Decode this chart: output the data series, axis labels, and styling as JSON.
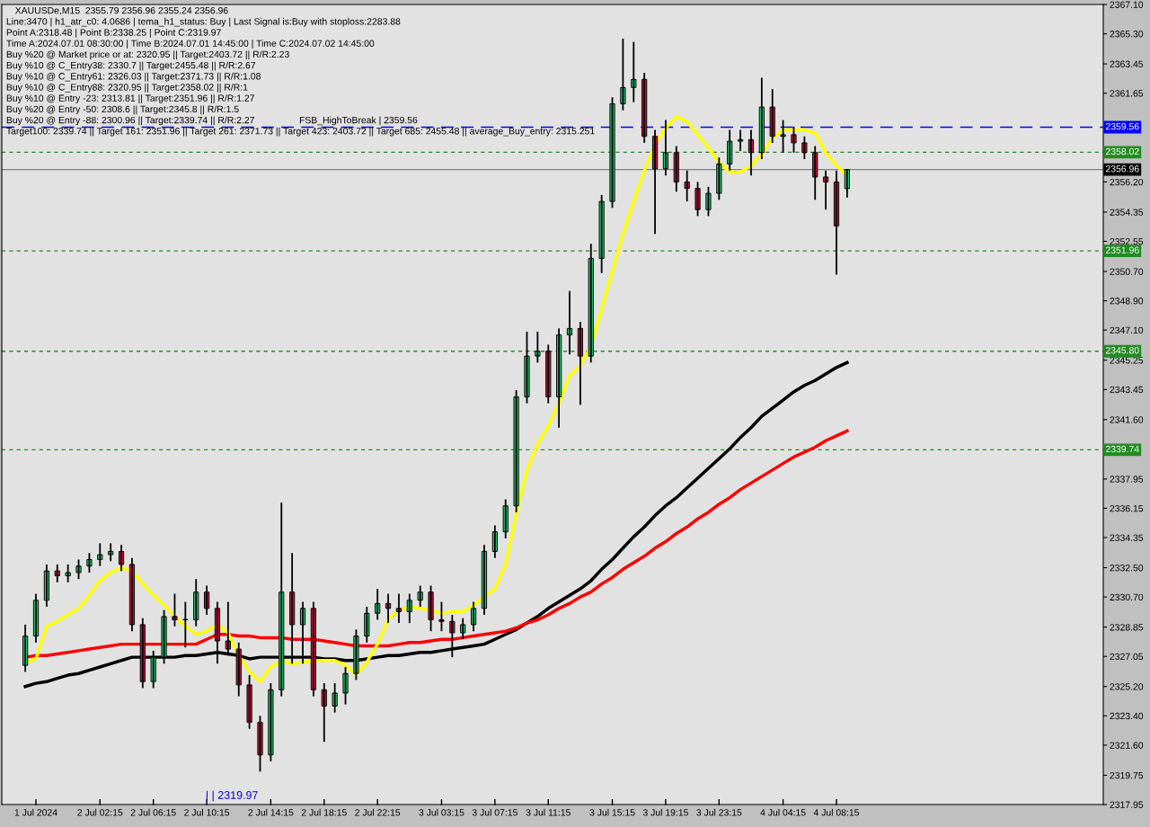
{
  "chart_data": {
    "type": "candlestick",
    "title": "XAUUSDe,M15  2355.79 2356.96 2355.24 2356.96",
    "annotations": [
      "Line:3470 | h1_atr_c0: 4.0686 | tema_h1_status: Buy | Last Signal is:Buy with stoploss:2283.88",
      "Point A:2318.48 | Point B:2338.25 | Point C:2319.97",
      "Time A:2024.07.01 08:30:00 | Time B:2024.07.01 14:45:00 | Time C:2024.07.02 14:45:00",
      "Buy %20 @ Market price or at: 2320.95 || Target:2403.72 || R/R:2.23",
      "Buy %10 @ C_Entry38: 2330.7 || Target:2455.48 || R/R:2.67",
      "Buy %10 @ C_Entry61: 2326.03 || Target:2371.73 || R/R:1.08",
      "Buy %10 @ C_Entry88: 2320.95 || Target:2358.02 || R/R:1",
      "Buy %10 @ Entry -23: 2313.81 || Target:2351.96 || R/R:1.27",
      "Buy %20 @ Entry -50: 2308.6 || Target:2345.8 || R/R:1.5",
      "Buy %20 @ Entry -88: 2300.96 || Target:2339.74 || R/R:2.27",
      "Target100: 2339.74 || Target 161: 2351.96 || Target 261: 2371.73 || Target 423: 2403.72 || Target 685: 2455.48 || average_Buy_entry: 2315.251",
      "FSB_HighToBreak | 2359.56",
      "| | 2319.97"
    ],
    "categories": [
      null,
      "1 Jul 2024",
      null,
      null,
      null,
      null,
      null,
      "2 Jul 02:15",
      null,
      null,
      null,
      null,
      "2 Jul 06:15",
      null,
      null,
      null,
      null,
      "2 Jul 10:15",
      null,
      null,
      null,
      null,
      null,
      "2 Jul 14:15",
      null,
      null,
      null,
      null,
      "2 Jul 18:15",
      null,
      null,
      null,
      null,
      "2 Jul 22:15",
      null,
      null,
      null,
      null,
      null,
      "3 Jul 03:15",
      null,
      null,
      null,
      null,
      "3 Jul 07:15",
      null,
      null,
      null,
      null,
      "3 Jul 11:15",
      null,
      null,
      null,
      null,
      null,
      "3 Jul 15:15",
      null,
      null,
      null,
      null,
      "3 Jul 19:15",
      null,
      null,
      null,
      null,
      "3 Jul 23:15",
      null,
      null,
      null,
      null,
      null,
      "4 Jul 04:15",
      null,
      null,
      null,
      null,
      "4 Jul 08:15",
      null
    ],
    "ohlc": [
      [
        2326.5,
        2329.0,
        2326.1,
        2328.3
      ],
      [
        2328.3,
        2330.9,
        2327.9,
        2330.5
      ],
      [
        2330.5,
        2332.7,
        2330.1,
        2332.3
      ],
      [
        2332.3,
        2332.7,
        2331.6,
        2332.0
      ],
      [
        2332.0,
        2332.7,
        2331.6,
        2332.2
      ],
      [
        2332.2,
        2333.0,
        2331.8,
        2332.6
      ],
      [
        2332.6,
        2333.4,
        2332.2,
        2333.0
      ],
      [
        2333.0,
        2334.0,
        2332.6,
        2333.3
      ],
      [
        2333.3,
        2334.0,
        2332.9,
        2333.5
      ],
      [
        2333.5,
        2333.9,
        2332.3,
        2332.7
      ],
      [
        2332.7,
        2333.1,
        2328.6,
        2329.0
      ],
      [
        2329.0,
        2329.4,
        2325.1,
        2325.5
      ],
      [
        2325.5,
        2327.4,
        2325.1,
        2327.0
      ],
      [
        2327.0,
        2329.9,
        2326.6,
        2329.5
      ],
      [
        2329.5,
        2330.9,
        2328.9,
        2329.3
      ],
      [
        2329.3,
        2330.4,
        2327.6,
        2329.3
      ],
      [
        2329.3,
        2331.8,
        2328.9,
        2331.0
      ],
      [
        2331.0,
        2331.4,
        2329.6,
        2330.0
      ],
      [
        2330.0,
        2330.4,
        2326.6,
        2328.0
      ],
      [
        2328.0,
        2330.4,
        2327.1,
        2327.5
      ],
      [
        2327.5,
        2327.9,
        2324.6,
        2325.3
      ],
      [
        2325.3,
        2325.9,
        2322.6,
        2323.0
      ],
      [
        2323.0,
        2323.4,
        2319.97,
        2321.0
      ],
      [
        2321.0,
        2325.4,
        2320.6,
        2325.0
      ],
      [
        2325.0,
        2336.5,
        2324.6,
        2331.0
      ],
      [
        2331.0,
        2333.4,
        2326.6,
        2329.0
      ],
      [
        2329.0,
        2330.4,
        2326.6,
        2330.0
      ],
      [
        2330.0,
        2330.4,
        2324.6,
        2325.0
      ],
      [
        2325.0,
        2325.4,
        2321.8,
        2324.0
      ],
      [
        2324.0,
        2325.4,
        2323.6,
        2324.8
      ],
      [
        2324.8,
        2326.4,
        2324.1,
        2326.0
      ],
      [
        2326.0,
        2328.7,
        2325.6,
        2328.3
      ],
      [
        2328.3,
        2330.1,
        2327.9,
        2329.7
      ],
      [
        2329.7,
        2331.2,
        2329.3,
        2330.3
      ],
      [
        2330.3,
        2330.9,
        2329.1,
        2330.0
      ],
      [
        2330.0,
        2330.9,
        2329.1,
        2329.8
      ],
      [
        2329.8,
        2330.9,
        2329.1,
        2330.5
      ],
      [
        2330.5,
        2331.4,
        2330.1,
        2331.0
      ],
      [
        2331.0,
        2331.4,
        2328.6,
        2329.3
      ],
      [
        2329.3,
        2330.4,
        2328.6,
        2329.2
      ],
      [
        2329.2,
        2329.6,
        2327.0,
        2328.5
      ],
      [
        2328.5,
        2329.4,
        2328.1,
        2329.0
      ],
      [
        2329.0,
        2330.4,
        2328.6,
        2330.0
      ],
      [
        2330.0,
        2333.9,
        2329.6,
        2333.5
      ],
      [
        2333.5,
        2335.1,
        2333.1,
        2334.7
      ],
      [
        2334.7,
        2336.7,
        2334.3,
        2336.3
      ],
      [
        2336.3,
        2343.4,
        2335.9,
        2343.0
      ],
      [
        2343.0,
        2347.0,
        2342.6,
        2345.5
      ],
      [
        2345.5,
        2347.0,
        2345.1,
        2345.8
      ],
      [
        2345.8,
        2346.2,
        2342.6,
        2343.0
      ],
      [
        2343.0,
        2347.2,
        2341.1,
        2346.8
      ],
      [
        2346.8,
        2349.5,
        2345.6,
        2347.2
      ],
      [
        2347.2,
        2347.6,
        2342.5,
        2345.5
      ],
      [
        2345.5,
        2352.4,
        2345.1,
        2351.5
      ],
      [
        2351.5,
        2355.4,
        2350.6,
        2355.0
      ],
      [
        2355.0,
        2361.4,
        2354.6,
        2361.0
      ],
      [
        2361.0,
        2365.0,
        2360.6,
        2362.0
      ],
      [
        2362.0,
        2364.8,
        2361.1,
        2362.5
      ],
      [
        2362.5,
        2362.9,
        2358.6,
        2359.0
      ],
      [
        2359.0,
        2359.4,
        2353.0,
        2357.0
      ],
      [
        2357.0,
        2360.0,
        2356.6,
        2358.0
      ],
      [
        2358.0,
        2358.4,
        2355.6,
        2356.2
      ],
      [
        2356.2,
        2356.9,
        2355.0,
        2355.8
      ],
      [
        2355.8,
        2356.2,
        2354.1,
        2354.5
      ],
      [
        2354.5,
        2355.9,
        2354.1,
        2355.5
      ],
      [
        2355.5,
        2357.7,
        2355.1,
        2357.3
      ],
      [
        2357.3,
        2359.4,
        2356.9,
        2358.7
      ],
      [
        2358.7,
        2359.4,
        2358.1,
        2358.8
      ],
      [
        2358.8,
        2359.4,
        2356.6,
        2358.0
      ],
      [
        2358.0,
        2362.6,
        2357.6,
        2360.8
      ],
      [
        2360.8,
        2361.9,
        2358.6,
        2359.0
      ],
      [
        2359.0,
        2360.0,
        2358.0,
        2359.1
      ],
      [
        2359.1,
        2359.6,
        2358.0,
        2358.6
      ],
      [
        2358.6,
        2359.0,
        2357.6,
        2358.0
      ],
      [
        2358.0,
        2358.4,
        2355.1,
        2356.5
      ],
      [
        2356.5,
        2356.9,
        2354.5,
        2356.2
      ],
      [
        2356.2,
        2356.9,
        2350.5,
        2353.5
      ],
      [
        2355.79,
        2356.96,
        2355.24,
        2356.96
      ]
    ],
    "series": [
      {
        "type": "line",
        "color": "#000000",
        "values": [
          2325.2,
          2325.4,
          2325.5,
          2325.7,
          2325.9,
          2326.0,
          2326.2,
          2326.4,
          2326.6,
          2326.8,
          2327.0,
          2327.0,
          2327.0,
          2327.0,
          2327.0,
          2327.1,
          2327.1,
          2327.2,
          2327.3,
          2327.2,
          2327.1,
          2326.9,
          2327.0,
          2327.0,
          2327.0,
          2327.0,
          2327.0,
          2327.0,
          2326.9,
          2326.9,
          2326.8,
          2326.8,
          2326.9,
          2327.0,
          2327.1,
          2327.1,
          2327.2,
          2327.3,
          2327.3,
          2327.4,
          2327.5,
          2327.6,
          2327.7,
          2327.8,
          2328.1,
          2328.4,
          2328.7,
          2329.1,
          2329.5,
          2330.0,
          2330.4,
          2330.8,
          2331.2,
          2331.7,
          2332.4,
          2333.0,
          2333.7,
          2334.4,
          2335.0,
          2335.7,
          2336.3,
          2336.8,
          2337.4,
          2338.0,
          2338.6,
          2339.2,
          2339.8,
          2340.5,
          2341.1,
          2341.8,
          2342.3,
          2342.8,
          2343.3,
          2343.7,
          2344.0,
          2344.4,
          2344.8,
          2345.1
        ]
      },
      {
        "type": "line",
        "color": "#ff0000",
        "values": [
          2327.0,
          2327.1,
          2327.1,
          2327.2,
          2327.3,
          2327.4,
          2327.5,
          2327.6,
          2327.7,
          2327.8,
          2327.8,
          2327.8,
          2327.8,
          2327.8,
          2327.8,
          2327.8,
          2327.8,
          2328.1,
          2328.4,
          2328.4,
          2328.3,
          2328.3,
          2328.2,
          2328.2,
          2328.2,
          2328.1,
          2328.1,
          2328.1,
          2328.0,
          2327.9,
          2327.8,
          2327.7,
          2327.7,
          2327.7,
          2327.7,
          2327.8,
          2327.9,
          2327.9,
          2328.0,
          2328.1,
          2328.1,
          2328.2,
          2328.3,
          2328.4,
          2328.5,
          2328.6,
          2328.8,
          2329.1,
          2329.3,
          2329.6,
          2330.0,
          2330.3,
          2330.7,
          2331.0,
          2331.5,
          2331.9,
          2332.4,
          2332.8,
          2333.2,
          2333.7,
          2334.1,
          2334.6,
          2335.0,
          2335.5,
          2335.9,
          2336.4,
          2336.8,
          2337.3,
          2337.7,
          2338.1,
          2338.5,
          2338.9,
          2339.3,
          2339.6,
          2339.9,
          2340.3,
          2340.6,
          2340.9
        ]
      },
      {
        "type": "line",
        "color": "#ffff00",
        "values": [
          2326.7,
          2326.9,
          2328.9,
          2329.2,
          2329.6,
          2330.0,
          2330.8,
          2331.7,
          2332.2,
          2332.5,
          2332.3,
          2331.5,
          2330.8,
          2330.2,
          2329.5,
          2328.9,
          2328.4,
          2328.6,
          2329.0,
          2328.5,
          2327.1,
          2326.1,
          2325.5,
          2326.4,
          2326.8,
          2326.6,
          2326.7,
          2326.8,
          2326.8,
          2326.8,
          2326.5,
          2325.9,
          2326.7,
          2327.8,
          2329.3,
          2329.9,
          2330.1,
          2330.0,
          2329.9,
          2329.7,
          2329.8,
          2329.8,
          2330.2,
          2330.7,
          2331.2,
          2332.7,
          2335.8,
          2338.5,
          2340.1,
          2341.2,
          2342.6,
          2344.3,
          2344.9,
          2346.1,
          2348.4,
          2350.7,
          2353.0,
          2355.0,
          2356.9,
          2358.5,
          2359.5,
          2360.2,
          2359.9,
          2359.1,
          2358.3,
          2357.4,
          2356.8,
          2356.8,
          2357.2,
          2357.9,
          2358.9,
          2359.4,
          2359.4,
          2359.4,
          2359.2,
          2358.0,
          2357.2,
          2356.6
        ]
      }
    ],
    "ref_lines": [
      {
        "axis": "y",
        "value": 2359.56,
        "label": "2359.56",
        "color": "#0000ff",
        "line_style": "dashed"
      },
      {
        "axis": "y",
        "value": 2358.02,
        "label": "2358.02",
        "color": "#228b22",
        "line_style": "dotted"
      },
      {
        "axis": "y",
        "value": 2356.96,
        "label": "2356.96",
        "color": "#808080",
        "line_style": "solid"
      },
      {
        "axis": "y",
        "value": 2351.96,
        "label": "2351.96",
        "color": "#228b22",
        "line_style": "dotted"
      },
      {
        "axis": "y",
        "value": 2345.8,
        "label": "2345.80",
        "color": "#228b22",
        "line_style": "dotted"
      },
      {
        "axis": "y",
        "value": 2339.74,
        "label": "2339.74",
        "color": "#228b22",
        "line_style": "dotted"
      }
    ],
    "ylim": [
      2317.95,
      2367.1
    ],
    "yticks": [
      2317.95,
      2319.75,
      {
        "value": 2321.6,
        "label": "2321.60"
      },
      {
        "value": 2323.4,
        "label": "2323.40"
      },
      {
        "value": 2325.2,
        "label": "2325.20"
      },
      2327.05,
      2328.85,
      {
        "value": 2330.7,
        "label": "2330.70"
      },
      {
        "value": 2332.5,
        "label": "2332.50"
      },
      2334.35,
      2336.15,
      2337.95,
      {
        "value": 2341.6,
        "label": "2341.60"
      },
      2343.45,
      2345.25,
      {
        "value": 2347.1,
        "label": "2347.10"
      },
      {
        "value": 2348.9,
        "label": "2348.90"
      },
      {
        "value": 2350.7,
        "label": "2350.70"
      },
      2352.55,
      2354.35,
      {
        "value": 2356.2,
        "label": "2356.20"
      },
      2361.65,
      2363.45,
      {
        "value": 2365.3,
        "label": "2365.30"
      },
      {
        "value": 2367.1,
        "label": "2367.10"
      }
    ]
  }
}
